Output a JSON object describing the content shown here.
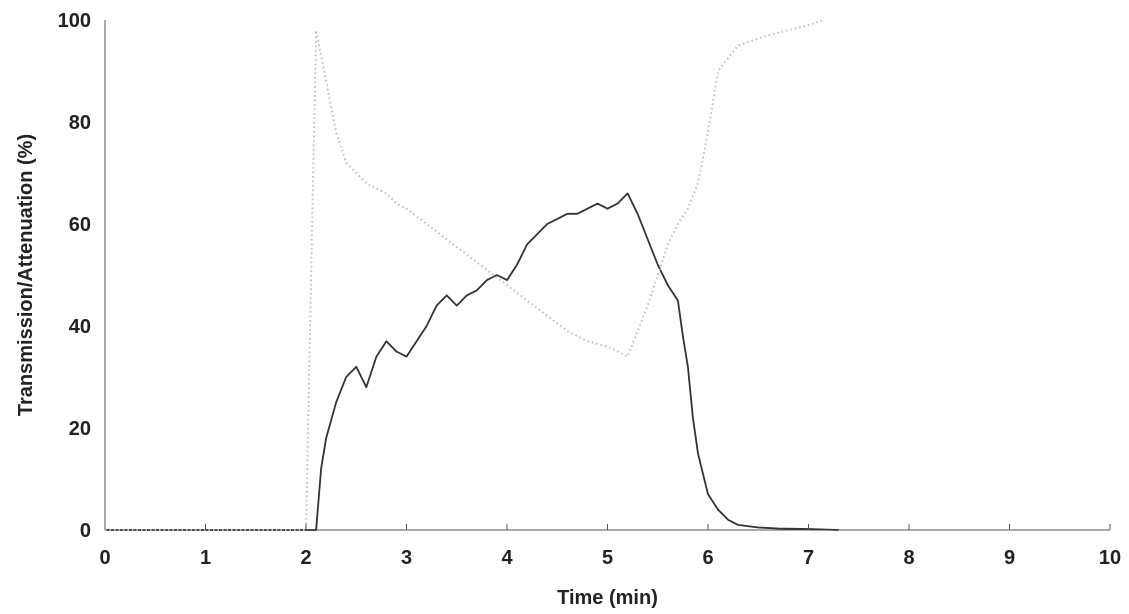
{
  "chart_data": {
    "type": "line",
    "title": "",
    "xlabel": "Time (min)",
    "ylabel": "Transmission/Attenuation (%)",
    "xlim": [
      0,
      10
    ],
    "ylim": [
      0,
      100
    ],
    "x_ticks": [
      "0",
      "1",
      "2",
      "3",
      "4",
      "5",
      "6",
      "7",
      "8",
      "9",
      "10"
    ],
    "y_ticks": [
      "0",
      "20",
      "40",
      "60",
      "80",
      "100"
    ],
    "grid": false,
    "legend": "none",
    "series": [
      {
        "style": "solid",
        "color": "#333333",
        "x": [
          0,
          1.8,
          2.05,
          2.1,
          2.15,
          2.2,
          2.3,
          2.4,
          2.5,
          2.6,
          2.7,
          2.8,
          2.9,
          3.0,
          3.1,
          3.2,
          3.3,
          3.4,
          3.5,
          3.6,
          3.7,
          3.8,
          3.9,
          4.0,
          4.1,
          4.2,
          4.3,
          4.4,
          4.5,
          4.6,
          4.7,
          4.8,
          4.9,
          5.0,
          5.1,
          5.2,
          5.3,
          5.4,
          5.5,
          5.6,
          5.7,
          5.75,
          5.8,
          5.85,
          5.9,
          6.0,
          6.1,
          6.2,
          6.3,
          6.5,
          6.7,
          7.0,
          7.3
        ],
        "y": [
          0,
          0,
          0,
          0,
          12,
          18,
          25,
          30,
          32,
          28,
          34,
          37,
          35,
          34,
          37,
          40,
          44,
          46,
          44,
          46,
          47,
          49,
          50,
          49,
          52,
          56,
          58,
          60,
          61,
          62,
          62,
          63,
          64,
          63,
          64,
          66,
          62,
          57,
          52,
          48,
          45,
          38,
          32,
          22,
          15,
          7,
          4,
          2,
          1,
          0.5,
          0.3,
          0.2,
          0
        ]
      },
      {
        "style": "dotted",
        "color": "#bdbdbd",
        "x": [
          0,
          2.0,
          2.1,
          2.2,
          2.3,
          2.4,
          2.5,
          2.6,
          2.7,
          2.8,
          2.9,
          3.0,
          3.2,
          3.4,
          3.6,
          3.8,
          4.0,
          4.2,
          4.4,
          4.6,
          4.8,
          5.0,
          5.2,
          5.4,
          5.5,
          5.6,
          5.7,
          5.8,
          5.9,
          6.0,
          6.1,
          6.3,
          6.6,
          7.0,
          7.15
        ],
        "y": [
          0,
          0,
          98,
          88,
          78,
          72,
          70,
          68,
          67,
          66,
          64,
          63,
          60,
          57,
          54,
          51,
          48,
          45,
          42,
          39,
          37,
          36,
          34,
          44,
          50,
          56,
          60,
          63,
          68,
          78,
          90,
          95,
          97,
          99,
          100
        ]
      }
    ]
  }
}
